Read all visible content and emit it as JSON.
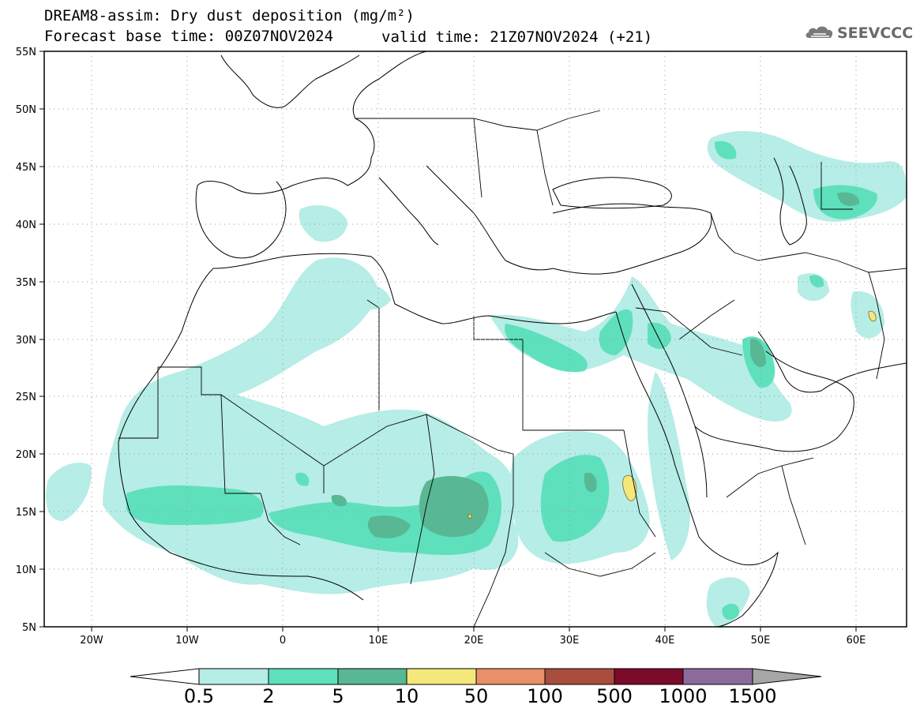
{
  "header": {
    "title_line1": "DREAM8-assim: Dry dust deposition (mg/m²)",
    "forecast_base": "Forecast base time: 00Z07NOV2024",
    "valid_time": "valid time: 21Z07NOV2024 (+21)",
    "logo_text": "SEEVCCC",
    "logo_icon": "cloud-icon"
  },
  "map": {
    "lat_labels": [
      "55N",
      "50N",
      "45N",
      "40N",
      "35N",
      "30N",
      "25N",
      "20N",
      "15N",
      "10N",
      "5N"
    ],
    "lon_labels": [
      "20W",
      "10W",
      "0",
      "10E",
      "20E",
      "30E",
      "40E",
      "50E",
      "60E"
    ],
    "lat_range": [
      5,
      55
    ],
    "lon_range": [
      -25,
      65
    ],
    "grid": "dotted"
  },
  "colorbar": {
    "labels": [
      "0.5",
      "2",
      "5",
      "10",
      "50",
      "100",
      "500",
      "1000",
      "1500"
    ],
    "colors": [
      "#b6ede6",
      "#5fe0bc",
      "#58b893",
      "#f4e87a",
      "#e89168",
      "#a94d3e",
      "#7c0b2b",
      "#8b6b9c",
      "#a6a6a6"
    ],
    "under_color": "#ffffff",
    "over_color": "#a6a6a6"
  }
}
